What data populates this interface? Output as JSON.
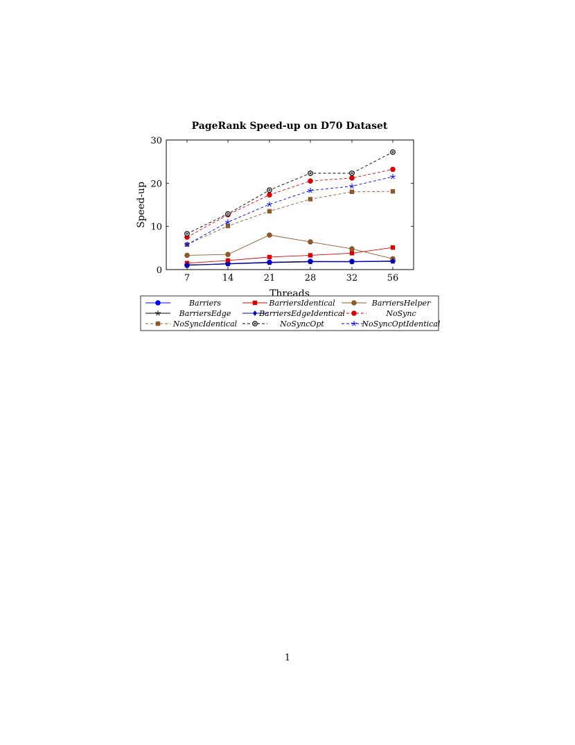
{
  "page": {
    "number": "1"
  },
  "chart_data": {
    "type": "line",
    "title": "PageRank Speed-up on D70 Dataset",
    "xlabel": "Threads",
    "ylabel": "Speed-up",
    "categories": [
      "7",
      "14",
      "21",
      "28",
      "32",
      "56"
    ],
    "ylim": [
      0,
      30
    ],
    "yticks": [
      0,
      10,
      20,
      30
    ],
    "grid": false,
    "legend": "bottom",
    "series": [
      {
        "name": "Barriers",
        "color": "#0000ff",
        "marker": "circle",
        "dashed": false,
        "values": [
          1.0,
          1.4,
          1.7,
          1.9,
          1.9,
          2.0
        ]
      },
      {
        "name": "BarriersIdentical",
        "color": "#dd0000",
        "marker": "square",
        "dashed": false,
        "values": [
          1.5,
          2.1,
          2.9,
          3.3,
          3.8,
          5.1
        ]
      },
      {
        "name": "BarriersHelper",
        "color": "#8c5a2b",
        "marker": "circle",
        "dashed": false,
        "values": [
          3.3,
          3.5,
          8.0,
          6.4,
          4.8,
          2.5
        ]
      },
      {
        "name": "BarriersEdge",
        "color": "#000000",
        "marker": "star",
        "dashed": false,
        "values": [
          1.0,
          1.3,
          1.6,
          1.8,
          1.8,
          1.9
        ]
      },
      {
        "name": "BarriersEdgeIdentical",
        "color": "#0000cc",
        "marker": "diamond",
        "dashed": false,
        "values": [
          1.1,
          1.3,
          1.7,
          1.9,
          1.8,
          2.0
        ]
      },
      {
        "name": "NoSync",
        "color": "#dd0000",
        "marker": "circle",
        "dashed": true,
        "values": [
          7.5,
          12.7,
          17.3,
          20.5,
          21.2,
          23.2
        ]
      },
      {
        "name": "NoSyncIdentical",
        "color": "#8c5a2b",
        "marker": "square",
        "dashed": true,
        "values": [
          5.8,
          10.1,
          13.5,
          16.3,
          18.0,
          18.1
        ]
      },
      {
        "name": "NoSyncOpt",
        "color": "#000000",
        "marker": "circle-dot",
        "dashed": true,
        "values": [
          8.3,
          12.9,
          18.4,
          22.3,
          22.3,
          27.2
        ]
      },
      {
        "name": "NoSyncOptIdentical",
        "color": "#0000ff",
        "marker": "star",
        "dashed": true,
        "values": [
          5.8,
          11.0,
          15.1,
          18.3,
          19.3,
          21.5
        ]
      }
    ]
  }
}
